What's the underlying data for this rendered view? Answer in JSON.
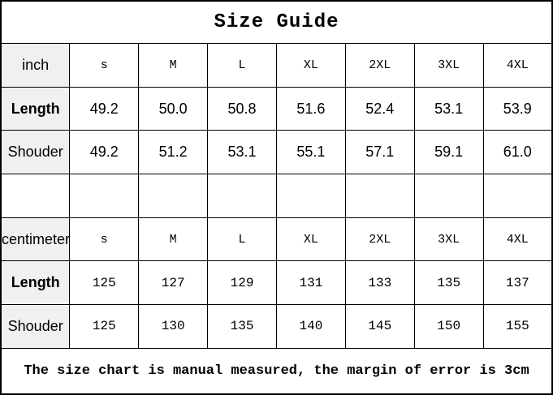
{
  "title": "Size Guide",
  "footer": "The size chart is manual measured, the margin of error is 3cm",
  "colors": {
    "label_column_background": "#f0f0f0",
    "border": "#000000",
    "background": "#ffffff",
    "text": "#000000"
  },
  "table": {
    "sections": [
      {
        "unit": "inch",
        "sizes": [
          "s",
          "M",
          "L",
          "XL",
          "2XL",
          "3XL",
          "4XL"
        ],
        "rows": [
          {
            "label": "Length",
            "values": [
              "49.2",
              "50.0",
              "50.8",
              "51.6",
              "52.4",
              "53.1",
              "53.9"
            ]
          },
          {
            "label": "Shouder",
            "values": [
              "49.2",
              "51.2",
              "53.1",
              "55.1",
              "57.1",
              "59.1",
              "61.0"
            ]
          }
        ]
      },
      {
        "unit": "centimeter",
        "sizes": [
          "s",
          "M",
          "L",
          "XL",
          "2XL",
          "3XL",
          "4XL"
        ],
        "rows": [
          {
            "label": "Length",
            "values": [
              "125",
              "127",
              "129",
              "131",
              "133",
              "135",
              "137"
            ]
          },
          {
            "label": "Shouder",
            "values": [
              "125",
              "130",
              "135",
              "140",
              "145",
              "150",
              "155"
            ]
          }
        ]
      }
    ]
  }
}
